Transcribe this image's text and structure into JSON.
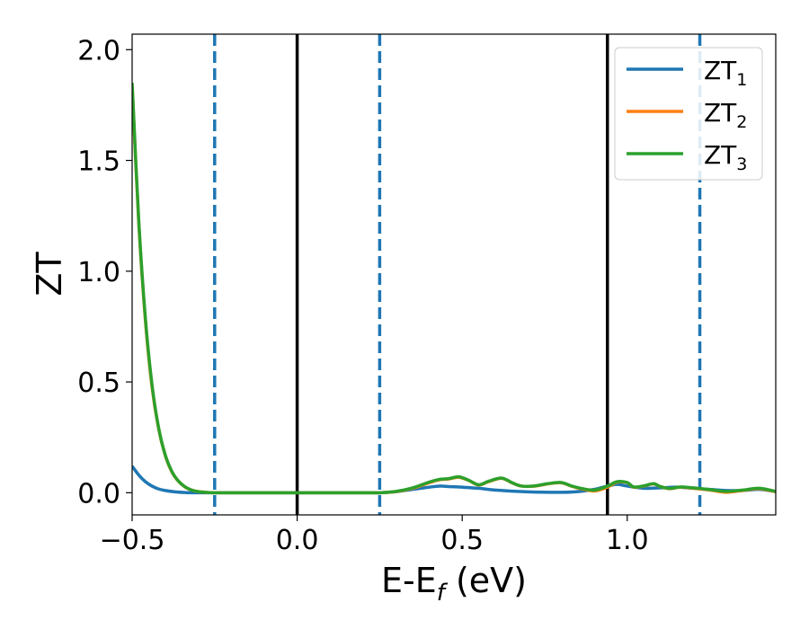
{
  "chart_data": {
    "type": "line",
    "xlabel": "E-E",
    "xlabel_sub": "f",
    "xlabel_unit": " (eV)",
    "ylabel": "ZT",
    "xlim": [
      -0.5,
      1.45
    ],
    "ylim": [
      -0.1,
      2.07
    ],
    "x_ticks": [
      -0.5,
      0.0,
      0.5,
      1.0
    ],
    "x_tick_labels": [
      "−0.5",
      "0.0",
      "0.5",
      "1.0"
    ],
    "y_ticks": [
      0.0,
      0.5,
      1.0,
      1.5,
      2.0
    ],
    "y_tick_labels": [
      "0.0",
      "0.5",
      "1.0",
      "1.5",
      "2.0"
    ],
    "grid": false,
    "legend_position": "top-right",
    "vlines": [
      {
        "x": -0.25,
        "style": "dashed",
        "color": "#1f77b4"
      },
      {
        "x": 0.0,
        "style": "solid",
        "color": "#000000"
      },
      {
        "x": 0.25,
        "style": "dashed",
        "color": "#1f77b4"
      },
      {
        "x": 0.94,
        "style": "solid",
        "color": "#000000"
      },
      {
        "x": 1.22,
        "style": "dashed",
        "color": "#1f77b4"
      }
    ],
    "series": [
      {
        "name": "ZT",
        "name_sub": "1",
        "color": "#1f77b4",
        "x": [
          -0.5,
          -0.48,
          -0.46,
          -0.44,
          -0.42,
          -0.4,
          -0.37,
          -0.34,
          -0.3,
          -0.25,
          -0.2,
          0.0,
          0.2,
          0.25,
          0.3,
          0.35,
          0.4,
          0.43,
          0.46,
          0.5,
          0.55,
          0.6,
          0.7,
          0.8,
          0.85,
          0.9,
          0.94,
          0.97,
          1.0,
          1.05,
          1.1,
          1.15,
          1.2,
          1.25,
          1.3,
          1.35,
          1.4,
          1.45
        ],
        "y": [
          0.12,
          0.08,
          0.05,
          0.03,
          0.017,
          0.01,
          0.004,
          0.001,
          0.0,
          0.0,
          0.0,
          0.0,
          0.0,
          0.0,
          0.005,
          0.015,
          0.025,
          0.03,
          0.028,
          0.025,
          0.02,
          0.012,
          0.004,
          0.002,
          0.005,
          0.015,
          0.03,
          0.038,
          0.03,
          0.02,
          0.022,
          0.025,
          0.02,
          0.015,
          0.01,
          0.01,
          0.015,
          0.005
        ]
      },
      {
        "name": "ZT",
        "name_sub": "2",
        "color": "#ff7f0e",
        "x": [
          -0.5,
          -0.48,
          -0.46,
          -0.44,
          -0.42,
          -0.4,
          -0.38,
          -0.36,
          -0.34,
          -0.32,
          -0.3,
          -0.28,
          -0.25,
          -0.2,
          0.0,
          0.2,
          0.25,
          0.3,
          0.35,
          0.4,
          0.43,
          0.46,
          0.49,
          0.52,
          0.55,
          0.58,
          0.62,
          0.65,
          0.68,
          0.72,
          0.76,
          0.8,
          0.83,
          0.86,
          0.9,
          0.94,
          0.97,
          1.0,
          1.02,
          1.05,
          1.08,
          1.1,
          1.13,
          1.16,
          1.2,
          1.25,
          1.3,
          1.35,
          1.4,
          1.45
        ],
        "y": [
          1.84,
          1.22,
          0.78,
          0.48,
          0.29,
          0.17,
          0.095,
          0.052,
          0.026,
          0.012,
          0.005,
          0.002,
          0.0,
          0.0,
          0.0,
          0.0,
          0.0,
          0.005,
          0.02,
          0.045,
          0.058,
          0.062,
          0.07,
          0.055,
          0.035,
          0.05,
          0.065,
          0.045,
          0.03,
          0.03,
          0.04,
          0.045,
          0.03,
          0.018,
          0.008,
          0.025,
          0.048,
          0.045,
          0.025,
          0.03,
          0.04,
          0.028,
          0.018,
          0.025,
          0.02,
          0.012,
          0.002,
          0.01,
          0.018,
          0.004
        ]
      },
      {
        "name": "ZT",
        "name_sub": "3",
        "color": "#2ca02c",
        "x": [
          -0.5,
          -0.48,
          -0.46,
          -0.44,
          -0.42,
          -0.4,
          -0.38,
          -0.36,
          -0.34,
          -0.32,
          -0.3,
          -0.28,
          -0.25,
          -0.2,
          0.0,
          0.2,
          0.25,
          0.3,
          0.35,
          0.4,
          0.43,
          0.46,
          0.49,
          0.52,
          0.55,
          0.58,
          0.62,
          0.65,
          0.68,
          0.72,
          0.76,
          0.8,
          0.83,
          0.86,
          0.9,
          0.94,
          0.97,
          1.0,
          1.02,
          1.05,
          1.08,
          1.1,
          1.13,
          1.16,
          1.2,
          1.25,
          1.3,
          1.35,
          1.4,
          1.45
        ],
        "y": [
          1.85,
          1.23,
          0.79,
          0.49,
          0.295,
          0.172,
          0.097,
          0.053,
          0.027,
          0.012,
          0.005,
          0.002,
          0.0,
          0.0,
          0.0,
          0.0,
          0.0,
          0.006,
          0.022,
          0.048,
          0.06,
          0.064,
          0.072,
          0.056,
          0.036,
          0.052,
          0.066,
          0.046,
          0.03,
          0.031,
          0.041,
          0.046,
          0.031,
          0.02,
          0.012,
          0.03,
          0.05,
          0.046,
          0.026,
          0.031,
          0.041,
          0.028,
          0.019,
          0.026,
          0.022,
          0.014,
          0.006,
          0.012,
          0.02,
          0.006
        ]
      }
    ]
  }
}
